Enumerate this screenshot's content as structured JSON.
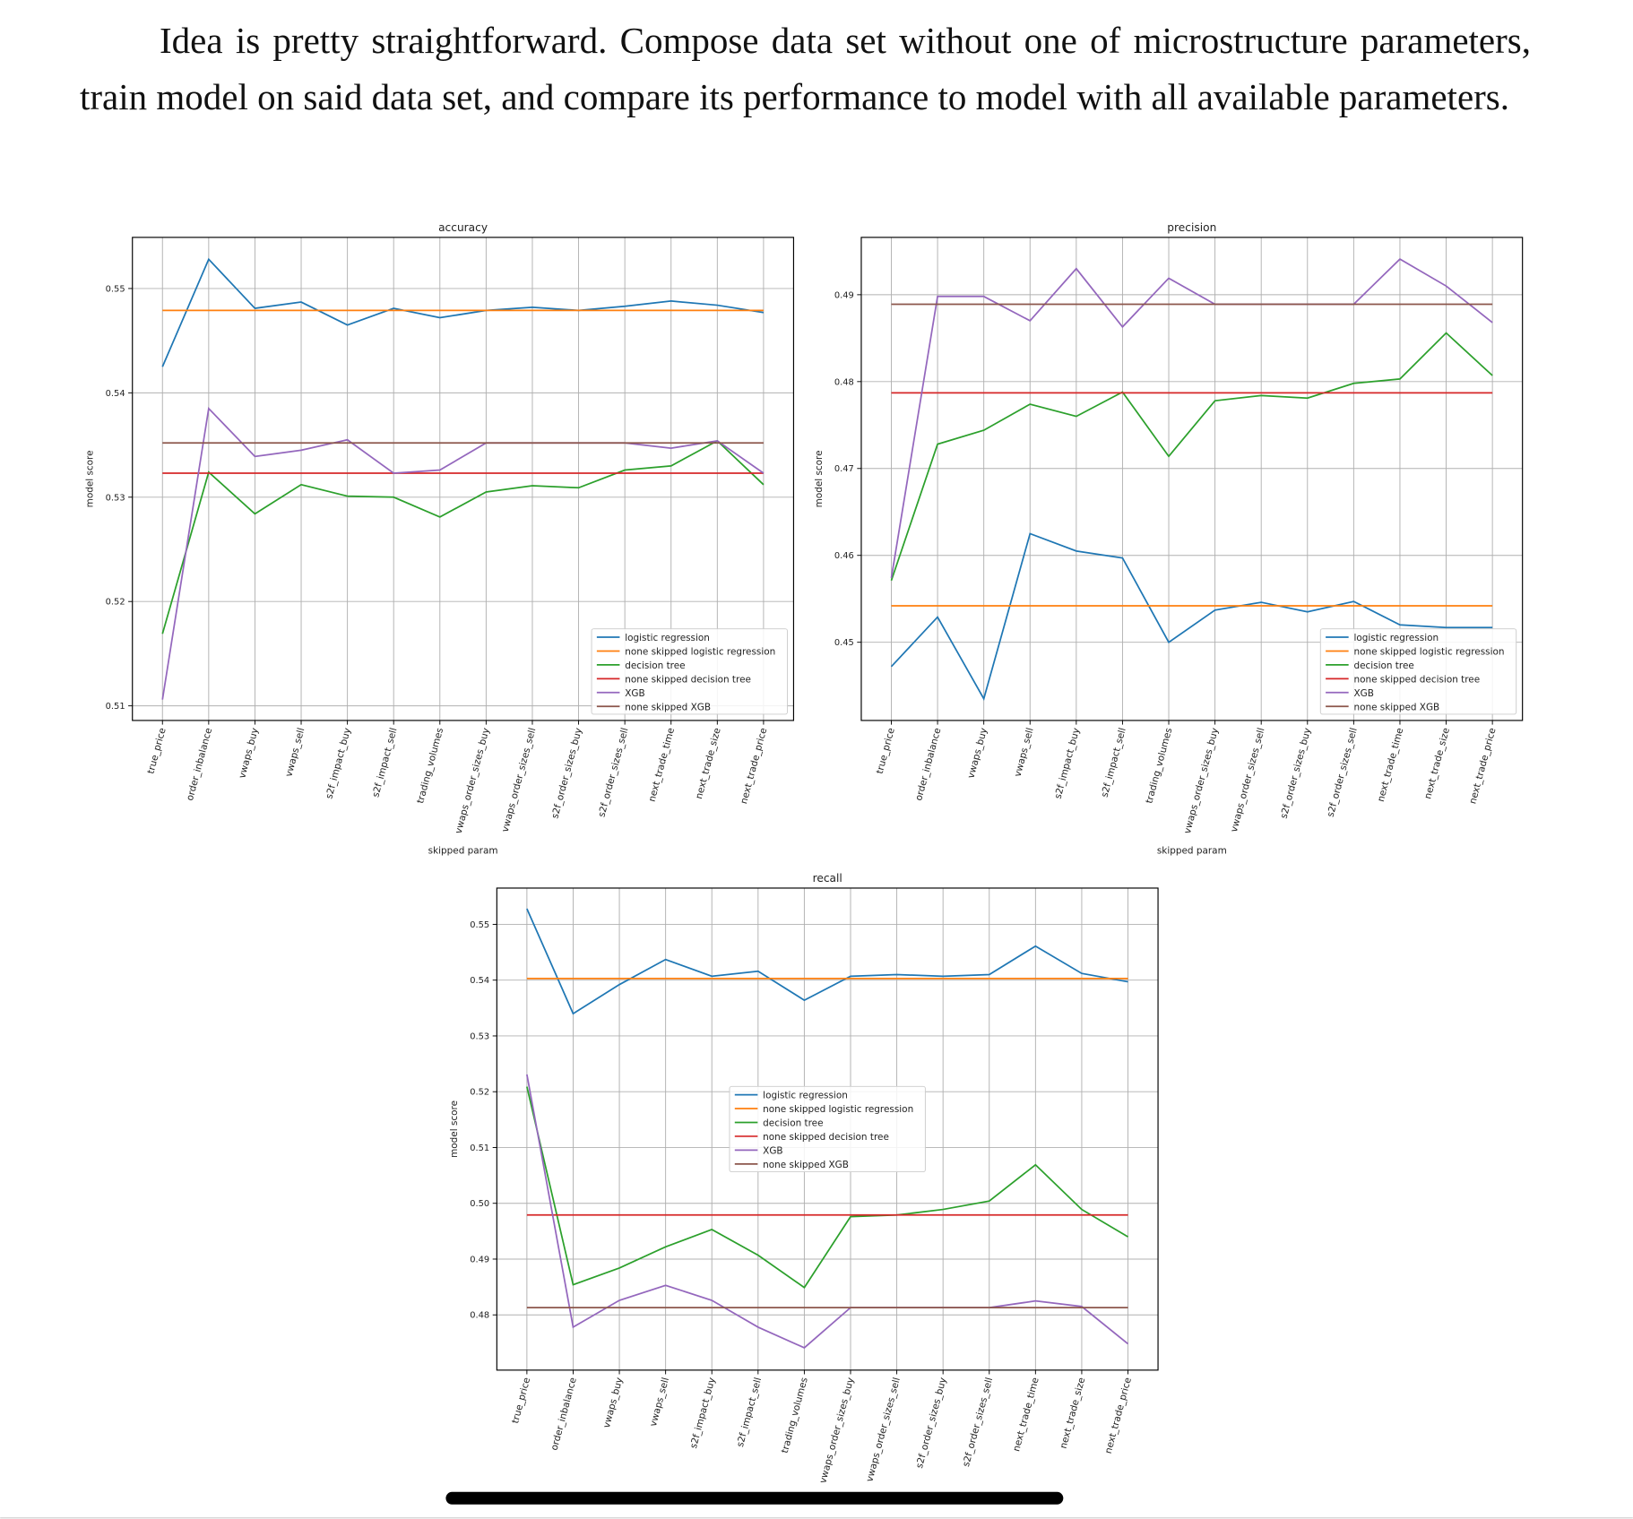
{
  "paragraph": "Idea is pretty straightforward. Compose data set without one of microstructure parameters, train model on said data set, and compare its performance to model with all available parameters.",
  "chart_data": [
    {
      "type": "line",
      "title": "accuracy",
      "y_label": "model score",
      "x_label": "skipped param",
      "categories": [
        "true_price",
        "order_inbalance",
        "vwaps_buy",
        "vwaps_sell",
        "s2f_impact_buy",
        "s2f_impact_sell",
        "trading_volumes",
        "vwaps_order_sizes_buy",
        "vwaps_order_sizes_sell",
        "s2f_order_sizes_buy",
        "s2f_order_sizes_sell",
        "next_trade_time",
        "next_trade_size",
        "next_trade_price"
      ],
      "ylim": [
        0.5086,
        0.5549
      ],
      "yticks": [
        0.51,
        0.52,
        0.53,
        0.54,
        0.55
      ],
      "grid": true,
      "legend": "lower right",
      "series": [
        {
          "name": "logistic regression",
          "color": "#1f77b4",
          "values": [
            0.5425,
            0.5528,
            0.5481,
            0.5487,
            0.5465,
            0.5481,
            0.5472,
            0.5479,
            0.5482,
            0.5479,
            0.5483,
            0.5488,
            0.5484,
            0.5477
          ]
        },
        {
          "name": "none skipped logistic regression",
          "color": "#ff7f0e",
          "values": [
            0.5479,
            0.5479,
            0.5479,
            0.5479,
            0.5479,
            0.5479,
            0.5479,
            0.5479,
            0.5479,
            0.5479,
            0.5479,
            0.5479,
            0.5479,
            0.5479
          ]
        },
        {
          "name": "decision tree",
          "color": "#2ca02c",
          "values": [
            0.5169,
            0.5324,
            0.5284,
            0.5312,
            0.5301,
            0.53,
            0.5281,
            0.5305,
            0.5311,
            0.5309,
            0.5326,
            0.533,
            0.5354,
            0.5312
          ]
        },
        {
          "name": "none skipped decision tree",
          "color": "#d62728",
          "values": [
            0.5323,
            0.5323,
            0.5323,
            0.5323,
            0.5323,
            0.5323,
            0.5323,
            0.5323,
            0.5323,
            0.5323,
            0.5323,
            0.5323,
            0.5323,
            0.5323
          ]
        },
        {
          "name": "XGB",
          "color": "#9467bd",
          "values": [
            0.5106,
            0.5385,
            0.5339,
            0.5345,
            0.5355,
            0.5323,
            0.5326,
            0.5352,
            0.5352,
            0.5352,
            0.5352,
            0.5347,
            0.5354,
            0.5323
          ]
        },
        {
          "name": "none skipped XGB",
          "color": "#8c564b",
          "values": [
            0.5352,
            0.5352,
            0.5352,
            0.5352,
            0.5352,
            0.5352,
            0.5352,
            0.5352,
            0.5352,
            0.5352,
            0.5352,
            0.5352,
            0.5352,
            0.5352
          ]
        }
      ]
    },
    {
      "type": "line",
      "title": "precision",
      "y_label": "model score",
      "x_label": "skipped param",
      "categories": [
        "true_price",
        "order_inbalance",
        "vwaps_buy",
        "vwaps_sell",
        "s2f_impact_buy",
        "s2f_impact_sell",
        "trading_volumes",
        "vwaps_order_sizes_buy",
        "vwaps_order_sizes_sell",
        "s2f_order_sizes_buy",
        "s2f_order_sizes_sell",
        "next_trade_time",
        "next_trade_size",
        "next_trade_price"
      ],
      "ylim": [
        0.441,
        0.4966
      ],
      "yticks": [
        0.45,
        0.46,
        0.47,
        0.48,
        0.49
      ],
      "grid": true,
      "legend": "lower right",
      "series": [
        {
          "name": "logistic regression",
          "color": "#1f77b4",
          "values": [
            0.4472,
            0.4529,
            0.4435,
            0.4625,
            0.4605,
            0.4597,
            0.45,
            0.4537,
            0.4546,
            0.4535,
            0.4547,
            0.452,
            0.4517,
            0.4517
          ]
        },
        {
          "name": "none skipped logistic regression",
          "color": "#ff7f0e",
          "values": [
            0.4542,
            0.4542,
            0.4542,
            0.4542,
            0.4542,
            0.4542,
            0.4542,
            0.4542,
            0.4542,
            0.4542,
            0.4542,
            0.4542,
            0.4542,
            0.4542
          ]
        },
        {
          "name": "decision tree",
          "color": "#2ca02c",
          "values": [
            0.4571,
            0.4728,
            0.4744,
            0.4774,
            0.476,
            0.4788,
            0.4714,
            0.4778,
            0.4784,
            0.4781,
            0.4798,
            0.4803,
            0.4856,
            0.4807
          ]
        },
        {
          "name": "none skipped decision tree",
          "color": "#d62728",
          "values": [
            0.4787,
            0.4787,
            0.4787,
            0.4787,
            0.4787,
            0.4787,
            0.4787,
            0.4787,
            0.4787,
            0.4787,
            0.4787,
            0.4787,
            0.4787,
            0.4787
          ]
        },
        {
          "name": "XGB",
          "color": "#9467bd",
          "values": [
            0.4574,
            0.4898,
            0.4898,
            0.487,
            0.493,
            0.4863,
            0.4919,
            0.4889,
            0.4889,
            0.4889,
            0.4889,
            0.4941,
            0.491,
            0.4868
          ]
        },
        {
          "name": "none skipped XGB",
          "color": "#8c564b",
          "values": [
            0.4889,
            0.4889,
            0.4889,
            0.4889,
            0.4889,
            0.4889,
            0.4889,
            0.4889,
            0.4889,
            0.4889,
            0.4889,
            0.4889,
            0.4889,
            0.4889
          ]
        }
      ]
    },
    {
      "type": "line",
      "title": "recall",
      "y_label": "model score",
      "categories": [
        "true_price",
        "order_inbalance",
        "vwaps_buy",
        "vwaps_sell",
        "s2f_impact_buy",
        "s2f_impact_sell",
        "trading_volumes",
        "vwaps_order_sizes_buy",
        "vwaps_order_sizes_sell",
        "s2f_order_sizes_buy",
        "s2f_order_sizes_sell",
        "next_trade_time",
        "next_trade_size",
        "next_trade_price"
      ],
      "ylim": [
        0.4701,
        0.5565
      ],
      "yticks": [
        0.48,
        0.49,
        {
          "value": 0.5,
          "label": "0.50"
        },
        0.51,
        0.52,
        0.53,
        0.54,
        0.55
      ],
      "grid": true,
      "legend": "center",
      "series": [
        {
          "name": "logistic regression",
          "color": "#1f77b4",
          "values": [
            0.5528,
            0.534,
            0.5392,
            0.5437,
            0.5407,
            0.5416,
            0.5364,
            0.5407,
            0.541,
            0.5407,
            0.541,
            0.5461,
            0.5412,
            0.5397
          ]
        },
        {
          "name": "none skipped logistic regression",
          "color": "#ff7f0e",
          "values": [
            0.5403,
            0.5403,
            0.5403,
            0.5403,
            0.5403,
            0.5403,
            0.5403,
            0.5403,
            0.5403,
            0.5403,
            0.5403,
            0.5403,
            0.5403,
            0.5403
          ]
        },
        {
          "name": "decision tree",
          "color": "#2ca02c",
          "values": [
            0.5209,
            0.4854,
            0.4884,
            0.4922,
            0.4953,
            0.4907,
            0.4849,
            0.4976,
            0.4979,
            0.4989,
            0.5004,
            0.5069,
            0.4989,
            0.494
          ]
        },
        {
          "name": "none skipped decision tree",
          "color": "#d62728",
          "values": [
            0.4979,
            0.4979,
            0.4979,
            0.4979,
            0.4979,
            0.4979,
            0.4979,
            0.4979,
            0.4979,
            0.4979,
            0.4979,
            0.4979,
            0.4979,
            0.4979
          ]
        },
        {
          "name": "XGB",
          "color": "#9467bd",
          "values": [
            0.5231,
            0.4778,
            0.4826,
            0.4853,
            0.4826,
            0.4778,
            0.4741,
            0.4813,
            0.4813,
            0.4813,
            0.4813,
            0.4825,
            0.4815,
            0.4748
          ]
        },
        {
          "name": "none skipped XGB",
          "color": "#8c564b",
          "values": [
            0.4813,
            0.4813,
            0.4813,
            0.4813,
            0.4813,
            0.4813,
            0.4813,
            0.4813,
            0.4813,
            0.4813,
            0.4813,
            0.4813,
            0.4813,
            0.4813
          ]
        }
      ]
    }
  ]
}
